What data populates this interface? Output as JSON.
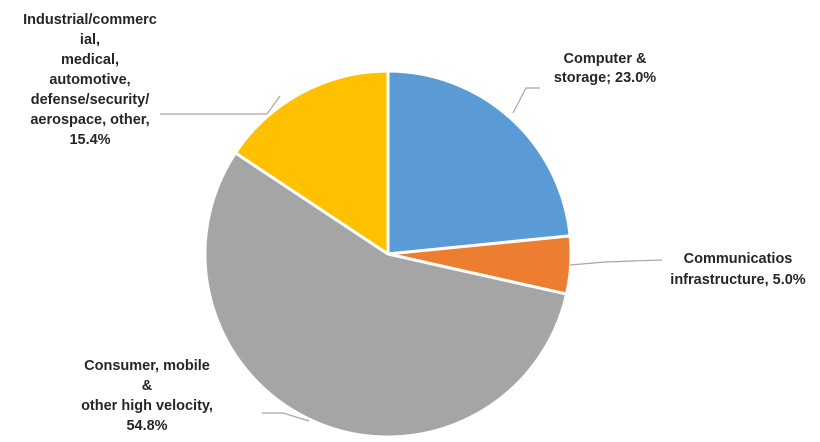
{
  "chart_data": {
    "type": "pie",
    "title": "",
    "legend": "none",
    "start_angle_deg": 0,
    "direction": "clockwise",
    "slices": [
      {
        "name": "Computer & storage",
        "value": 23.0,
        "color": "#5b9bd5",
        "label_lines": [
          "Computer &",
          "storage; 23.0%"
        ]
      },
      {
        "name": "Communicatios infrastructure",
        "value": 5.0,
        "color": "#ed7d31",
        "label_lines": [
          "Communicatios",
          "infrastructure, 5.0%"
        ]
      },
      {
        "name": "Consumer, mobile & other high velocity",
        "value": 54.8,
        "color": "#a5a5a5",
        "label_lines": [
          "Consumer, mobile",
          "&",
          "other high velocity,",
          "54.8%"
        ]
      },
      {
        "name": "Industrial/commercial, medical, automotive, defense/security/aerospace, other",
        "value": 15.4,
        "color": "#ffc000",
        "label_lines": [
          "Industrial/commerc",
          "ial,",
          "medical,",
          "automotive,",
          "defense/security/",
          "aerospace, other,",
          "15.4%"
        ]
      }
    ]
  }
}
